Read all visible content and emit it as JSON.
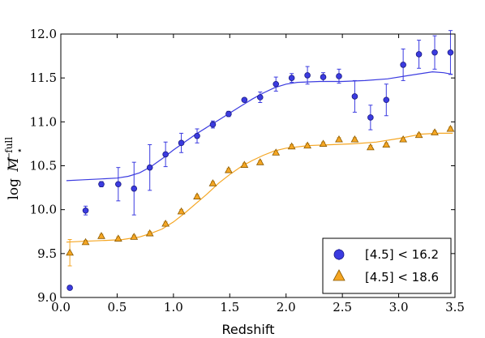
{
  "chart_data": {
    "type": "scatter",
    "xlabel": "Redshift",
    "ylabel_parts": {
      "base": "log",
      "symbol": "M",
      "sup": "full",
      "sub": "⋆"
    },
    "xlim": [
      0.0,
      3.5
    ],
    "ylim": [
      9.0,
      12.0
    ],
    "xticks": [
      0.0,
      0.5,
      1.0,
      1.5,
      2.0,
      2.5,
      3.0,
      3.5
    ],
    "xtick_labels": [
      "0.0",
      "0.5",
      "1.0",
      "1.5",
      "2.0",
      "2.5",
      "3.0",
      "3.5"
    ],
    "yticks": [
      9.0,
      9.5,
      10.0,
      10.5,
      11.0,
      11.5,
      12.0
    ],
    "ytick_labels": [
      "9.0",
      "9.5",
      "10.0",
      "10.5",
      "11.0",
      "11.5",
      "12.0"
    ],
    "grid": false,
    "legend_position": "bottom-right",
    "series": [
      {
        "name": "[4.5] < 16.2",
        "marker": "circle",
        "color": "#3b3be0",
        "edge": "#1a1a80",
        "points": [
          {
            "x": 0.08,
            "y": 9.11,
            "err": 0.02
          },
          {
            "x": 0.22,
            "y": 9.99,
            "err": 0.05
          },
          {
            "x": 0.36,
            "y": 10.29,
            "err": 0.03
          },
          {
            "x": 0.51,
            "y": 10.29,
            "err": 0.19
          },
          {
            "x": 0.65,
            "y": 10.24,
            "err": 0.3
          },
          {
            "x": 0.79,
            "y": 10.48,
            "err": 0.26
          },
          {
            "x": 0.93,
            "y": 10.63,
            "err": 0.14
          },
          {
            "x": 1.07,
            "y": 10.76,
            "err": 0.11
          },
          {
            "x": 1.21,
            "y": 10.84,
            "err": 0.08
          },
          {
            "x": 1.35,
            "y": 10.97,
            "err": 0.04
          },
          {
            "x": 1.49,
            "y": 11.09,
            "err": 0.03
          },
          {
            "x": 1.63,
            "y": 11.25,
            "err": 0.02
          },
          {
            "x": 1.77,
            "y": 11.28,
            "err": 0.06
          },
          {
            "x": 1.91,
            "y": 11.43,
            "err": 0.08
          },
          {
            "x": 2.05,
            "y": 11.5,
            "err": 0.05
          },
          {
            "x": 2.19,
            "y": 11.53,
            "err": 0.1
          },
          {
            "x": 2.33,
            "y": 11.51,
            "err": 0.05
          },
          {
            "x": 2.47,
            "y": 11.52,
            "err": 0.08
          },
          {
            "x": 2.61,
            "y": 11.29,
            "err": 0.18
          },
          {
            "x": 2.75,
            "y": 11.05,
            "err": 0.14
          },
          {
            "x": 2.89,
            "y": 11.25,
            "err": 0.18
          },
          {
            "x": 3.04,
            "y": 11.65,
            "err": 0.18
          },
          {
            "x": 3.18,
            "y": 11.77,
            "err": 0.16
          },
          {
            "x": 3.32,
            "y": 11.79,
            "err": 0.19
          },
          {
            "x": 3.46,
            "y": 11.79,
            "err": 0.25
          }
        ],
        "fit": [
          [
            0.05,
            10.33
          ],
          [
            0.2,
            10.34
          ],
          [
            0.35,
            10.35
          ],
          [
            0.5,
            10.36
          ],
          [
            0.6,
            10.38
          ],
          [
            0.7,
            10.42
          ],
          [
            0.8,
            10.49
          ],
          [
            0.9,
            10.58
          ],
          [
            1.0,
            10.68
          ],
          [
            1.1,
            10.77
          ],
          [
            1.2,
            10.86
          ],
          [
            1.3,
            10.94
          ],
          [
            1.4,
            11.02
          ],
          [
            1.5,
            11.1
          ],
          [
            1.6,
            11.18
          ],
          [
            1.7,
            11.26
          ],
          [
            1.8,
            11.33
          ],
          [
            1.9,
            11.39
          ],
          [
            2.0,
            11.43
          ],
          [
            2.1,
            11.45
          ],
          [
            2.3,
            11.46
          ],
          [
            2.5,
            11.46
          ],
          [
            2.7,
            11.47
          ],
          [
            2.9,
            11.49
          ],
          [
            3.1,
            11.53
          ],
          [
            3.3,
            11.57
          ],
          [
            3.4,
            11.56
          ],
          [
            3.48,
            11.54
          ]
        ]
      },
      {
        "name": "[4.5] < 18.6",
        "marker": "triangle",
        "color": "#f5a623",
        "edge": "#8a5a00",
        "points": [
          {
            "x": 0.08,
            "y": 9.51,
            "err": 0.15
          },
          {
            "x": 0.22,
            "y": 9.63,
            "err": 0.02
          },
          {
            "x": 0.36,
            "y": 9.7,
            "err": 0.02
          },
          {
            "x": 0.51,
            "y": 9.67,
            "err": 0.02
          },
          {
            "x": 0.65,
            "y": 9.69,
            "err": 0.02
          },
          {
            "x": 0.79,
            "y": 9.73,
            "err": 0.02
          },
          {
            "x": 0.93,
            "y": 9.84,
            "err": 0.02
          },
          {
            "x": 1.07,
            "y": 9.98,
            "err": 0.02
          },
          {
            "x": 1.21,
            "y": 10.15,
            "err": 0.02
          },
          {
            "x": 1.35,
            "y": 10.3,
            "err": 0.02
          },
          {
            "x": 1.49,
            "y": 10.45,
            "err": 0.02
          },
          {
            "x": 1.63,
            "y": 10.51,
            "err": 0.02
          },
          {
            "x": 1.77,
            "y": 10.54,
            "err": 0.02
          },
          {
            "x": 1.91,
            "y": 10.65,
            "err": 0.02
          },
          {
            "x": 2.05,
            "y": 10.72,
            "err": 0.02
          },
          {
            "x": 2.19,
            "y": 10.73,
            "err": 0.02
          },
          {
            "x": 2.33,
            "y": 10.75,
            "err": 0.02
          },
          {
            "x": 2.47,
            "y": 10.8,
            "err": 0.02
          },
          {
            "x": 2.61,
            "y": 10.8,
            "err": 0.02
          },
          {
            "x": 2.75,
            "y": 10.71,
            "err": 0.02
          },
          {
            "x": 2.89,
            "y": 10.74,
            "err": 0.02
          },
          {
            "x": 3.04,
            "y": 10.8,
            "err": 0.02
          },
          {
            "x": 3.18,
            "y": 10.85,
            "err": 0.02
          },
          {
            "x": 3.32,
            "y": 10.88,
            "err": 0.02
          },
          {
            "x": 3.46,
            "y": 10.92,
            "err": 0.02
          }
        ],
        "fit": [
          [
            0.05,
            9.63
          ],
          [
            0.2,
            9.64
          ],
          [
            0.4,
            9.65
          ],
          [
            0.55,
            9.66
          ],
          [
            0.7,
            9.69
          ],
          [
            0.8,
            9.73
          ],
          [
            0.9,
            9.78
          ],
          [
            1.0,
            9.86
          ],
          [
            1.1,
            9.96
          ],
          [
            1.2,
            10.07
          ],
          [
            1.3,
            10.18
          ],
          [
            1.4,
            10.3
          ],
          [
            1.5,
            10.4
          ],
          [
            1.6,
            10.49
          ],
          [
            1.7,
            10.56
          ],
          [
            1.8,
            10.62
          ],
          [
            1.9,
            10.67
          ],
          [
            2.0,
            10.7
          ],
          [
            2.2,
            10.73
          ],
          [
            2.4,
            10.74
          ],
          [
            2.6,
            10.75
          ],
          [
            2.8,
            10.77
          ],
          [
            3.0,
            10.81
          ],
          [
            3.2,
            10.86
          ],
          [
            3.35,
            10.87
          ],
          [
            3.48,
            10.87
          ]
        ]
      }
    ]
  }
}
